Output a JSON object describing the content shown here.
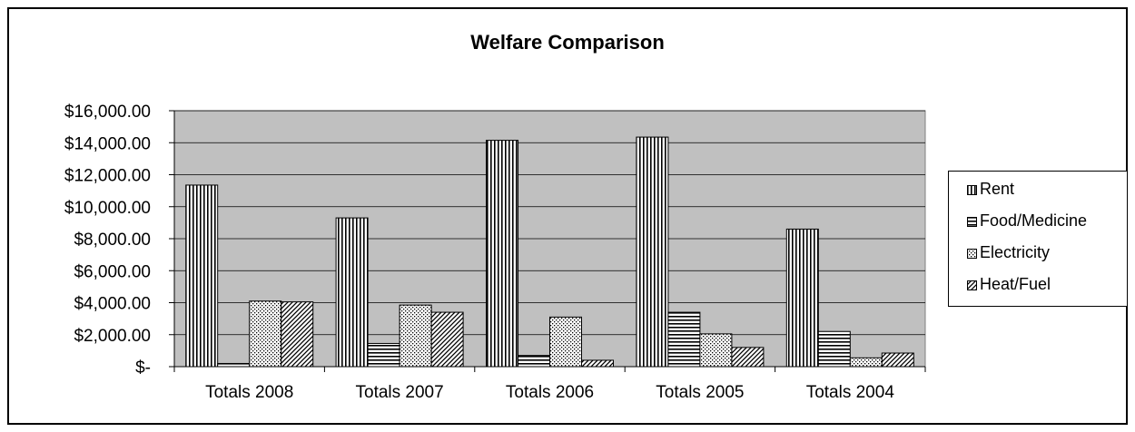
{
  "chart_data": {
    "type": "bar",
    "title": "Welfare Comparison",
    "xlabel": "",
    "ylabel": "",
    "categories": [
      "Totals 2008",
      "Totals 2007",
      "Totals 2006",
      "Totals 2005",
      "Totals 2004"
    ],
    "series": [
      {
        "name": "Rent",
        "pattern": "vertical-lines",
        "values": [
          11350,
          9300,
          14150,
          14350,
          8600
        ]
      },
      {
        "name": "Food/Medicine",
        "pattern": "horizontal-lines",
        "values": [
          200,
          1450,
          700,
          3400,
          2200
        ]
      },
      {
        "name": "Electricity",
        "pattern": "dots",
        "values": [
          4100,
          3850,
          3100,
          2050,
          550
        ]
      },
      {
        "name": "Heat/Fuel",
        "pattern": "diagonal-lines",
        "values": [
          4050,
          3400,
          400,
          1200,
          850
        ]
      }
    ],
    "ylim": [
      0,
      16000
    ],
    "yticks": [
      0,
      2000,
      4000,
      6000,
      8000,
      10000,
      12000,
      14000,
      16000
    ],
    "ytick_labels": [
      "$-",
      "$2,000.00",
      "$4,000.00",
      "$6,000.00",
      "$8,000.00",
      "$10,000.00",
      "$12,000.00",
      "$14,000.00",
      "$16,000.00"
    ],
    "grid": true,
    "legend_position": "right",
    "plot_background": "#c0c0c0"
  }
}
